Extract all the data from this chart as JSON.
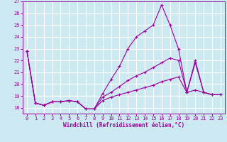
{
  "xlabel": "Windchill (Refroidissement éolien,°C)",
  "bg_color": "#cce8f0",
  "grid_color": "#ffffff",
  "line_color": "#990099",
  "x_values": [
    0,
    1,
    2,
    3,
    4,
    5,
    6,
    7,
    8,
    9,
    10,
    11,
    12,
    13,
    14,
    15,
    16,
    17,
    18,
    19,
    20,
    21,
    22,
    23
  ],
  "series1": [
    22.8,
    18.4,
    18.2,
    18.5,
    18.5,
    18.6,
    18.5,
    17.9,
    17.9,
    19.2,
    20.4,
    21.5,
    23.0,
    24.0,
    24.5,
    25.0,
    26.7,
    25.0,
    23.0,
    19.3,
    22.0,
    19.3,
    19.1,
    19.1
  ],
  "series2": [
    22.8,
    18.4,
    18.2,
    18.5,
    18.5,
    18.6,
    18.5,
    17.9,
    17.9,
    18.9,
    19.3,
    19.8,
    20.3,
    20.7,
    21.0,
    21.4,
    21.8,
    22.2,
    22.0,
    19.3,
    21.8,
    19.3,
    19.1,
    19.1
  ],
  "series3": [
    22.8,
    18.4,
    18.2,
    18.5,
    18.5,
    18.6,
    18.5,
    17.9,
    17.9,
    18.6,
    18.9,
    19.1,
    19.3,
    19.5,
    19.7,
    19.9,
    20.2,
    20.4,
    20.6,
    19.3,
    19.5,
    19.3,
    19.1,
    19.1
  ],
  "ylim_min": 17.5,
  "ylim_max": 27.0,
  "yticks": [
    18,
    19,
    20,
    21,
    22,
    23,
    24,
    25,
    26,
    27
  ],
  "xticks": [
    0,
    1,
    2,
    3,
    4,
    5,
    6,
    7,
    8,
    9,
    10,
    11,
    12,
    13,
    14,
    15,
    16,
    17,
    18,
    19,
    20,
    21,
    22,
    23
  ]
}
